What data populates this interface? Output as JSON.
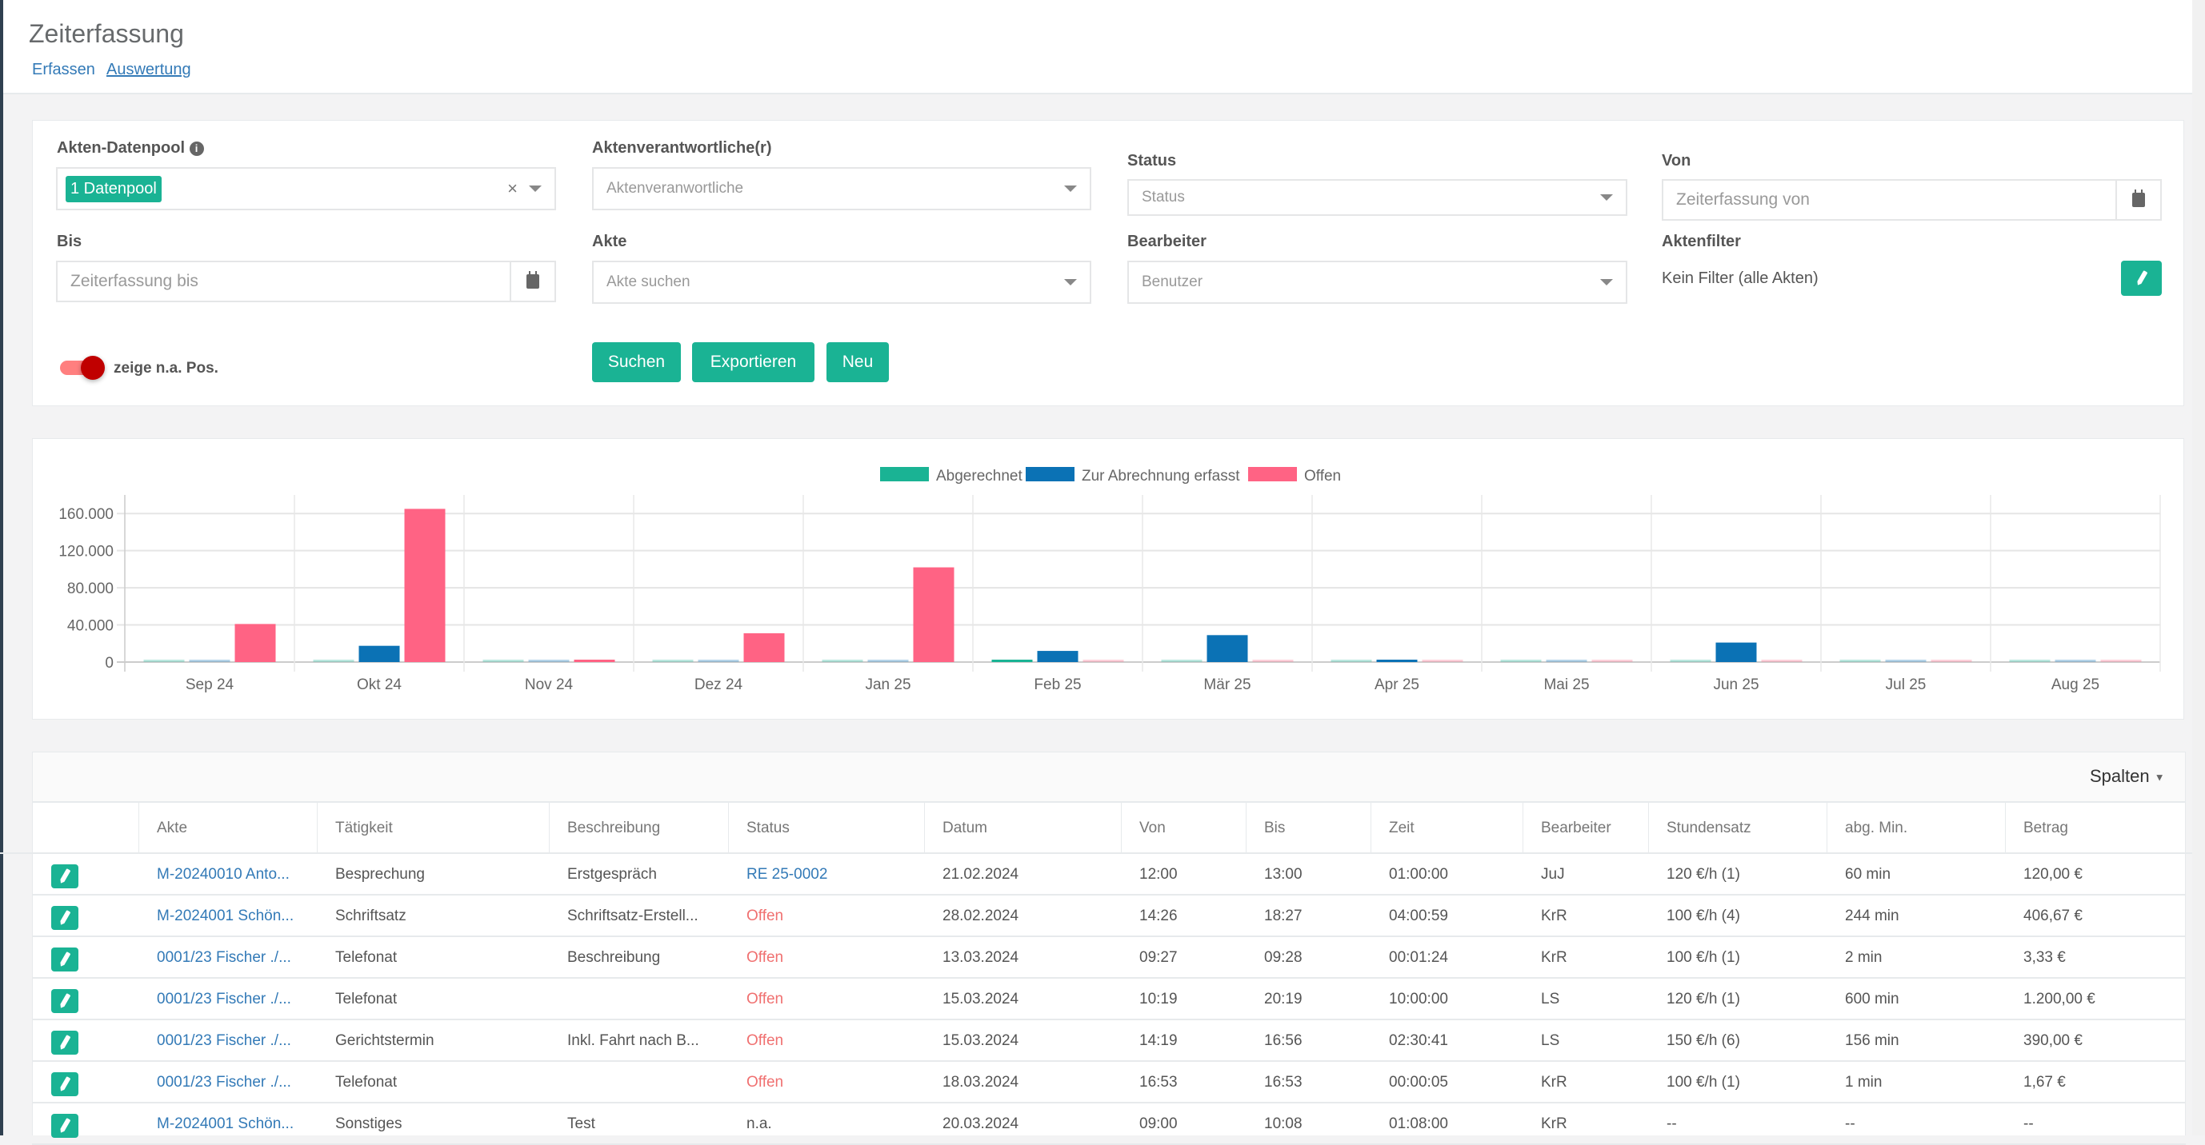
{
  "header": {
    "title": "Zeiterfassung",
    "links": [
      "Erfassen",
      "Auswertung"
    ]
  },
  "filters": {
    "datenpool": {
      "label": "Akten-Datenpool",
      "tag": "1 Datenpool",
      "icon": "info-icon"
    },
    "aktenverantwortliche": {
      "label": "Aktenverantwortliche(r)",
      "placeholder": "Aktenveranwortliche"
    },
    "status": {
      "label": "Status",
      "placeholder": "Status"
    },
    "von": {
      "label": "Von",
      "placeholder": "Zeiterfassung von"
    },
    "bis": {
      "label": "Bis",
      "placeholder": "Zeiterfassung bis"
    },
    "akte": {
      "label": "Akte",
      "placeholder": "Akte suchen"
    },
    "bearbeiter": {
      "label": "Bearbeiter",
      "placeholder": "Benutzer"
    },
    "aktenfilter": {
      "label": "Aktenfilter",
      "value": "Kein Filter (alle Akten)"
    },
    "toggle": {
      "label": "zeige n.a. Pos.",
      "on": true
    },
    "buttons": {
      "search": "Suchen",
      "export": "Exportieren",
      "new": "Neu"
    }
  },
  "colors": {
    "accent": "#1ab394",
    "abgerechnet": "#1ab394",
    "erfasst": "#0b72b5",
    "offen": "#ff6384",
    "link": "#337ab7"
  },
  "chart_data": {
    "type": "bar",
    "categories": [
      "Sep 24",
      "Okt 24",
      "Nov 24",
      "Dez 24",
      "Jan 25",
      "Feb 25",
      "Mär 25",
      "Apr 25",
      "Mai 25",
      "Jun 25",
      "Jul 25",
      "Aug 25"
    ],
    "series": [
      {
        "name": "Abgerechnet",
        "values": [
          500,
          500,
          500,
          0,
          500,
          2500,
          0,
          300,
          0,
          0,
          0,
          0
        ]
      },
      {
        "name": "Zur Abrechnung erfasst",
        "values": [
          0,
          17500,
          500,
          0,
          500,
          12000,
          29000,
          2000,
          0,
          21000,
          500,
          0
        ]
      },
      {
        "name": "Offen",
        "values": [
          41000,
          165000,
          1500,
          31000,
          102000,
          200,
          600,
          800,
          200,
          300,
          600,
          0
        ]
      }
    ],
    "yticks": [
      "0",
      "40.000",
      "80.000",
      "120.000",
      "160.000"
    ],
    "ylim": [
      0,
      180000
    ],
    "grid": true,
    "legend": "top"
  },
  "table": {
    "toolbar": {
      "columns_label": "Spalten"
    },
    "headers": [
      "Akte",
      "Tätigkeit",
      "Beschreibung",
      "Status",
      "Datum",
      "Von",
      "Bis",
      "Zeit",
      "Bearbeiter",
      "Stundensatz",
      "abg. Min.",
      "Betrag"
    ],
    "rows": [
      [
        "M-20240010 Anto...",
        "Besprechung",
        "Erstgespräch",
        "RE 25-0002",
        "21.02.2024",
        "12:00",
        "13:00",
        "01:00:00",
        "JuJ",
        "120 €/h (1)",
        "60 min",
        "120,00 €"
      ],
      [
        "M-2024001 Schön...",
        "Schriftsatz",
        "Schriftsatz-Erstell...",
        "Offen",
        "28.02.2024",
        "14:26",
        "18:27",
        "04:00:59",
        "KrR",
        "100 €/h (4)",
        "244 min",
        "406,67 €"
      ],
      [
        "0001/23 Fischer ./...",
        "Telefonat",
        "Beschreibung",
        "Offen",
        "13.03.2024",
        "09:27",
        "09:28",
        "00:01:24",
        "KrR",
        "100 €/h (1)",
        "2 min",
        "3,33 €"
      ],
      [
        "0001/23 Fischer ./...",
        "Telefonat",
        "",
        "Offen",
        "15.03.2024",
        "10:19",
        "20:19",
        "10:00:00",
        "LS",
        "120 €/h (1)",
        "600 min",
        "1.200,00 €"
      ],
      [
        "0001/23 Fischer ./...",
        "Gerichtstermin",
        "Inkl. Fahrt nach B...",
        "Offen",
        "15.03.2024",
        "14:19",
        "16:56",
        "02:30:41",
        "LS",
        "150 €/h (6)",
        "156 min",
        "390,00 €"
      ],
      [
        "0001/23 Fischer ./...",
        "Telefonat",
        "",
        "Offen",
        "18.03.2024",
        "16:53",
        "16:53",
        "00:00:05",
        "KrR",
        "100 €/h (1)",
        "1 min",
        "1,67 €"
      ],
      [
        "M-2024001 Schön...",
        "Sonstiges",
        "Test",
        "n.a.",
        "20.03.2024",
        "09:00",
        "10:08",
        "01:08:00",
        "KrR",
        "--",
        "--",
        "--"
      ]
    ]
  }
}
